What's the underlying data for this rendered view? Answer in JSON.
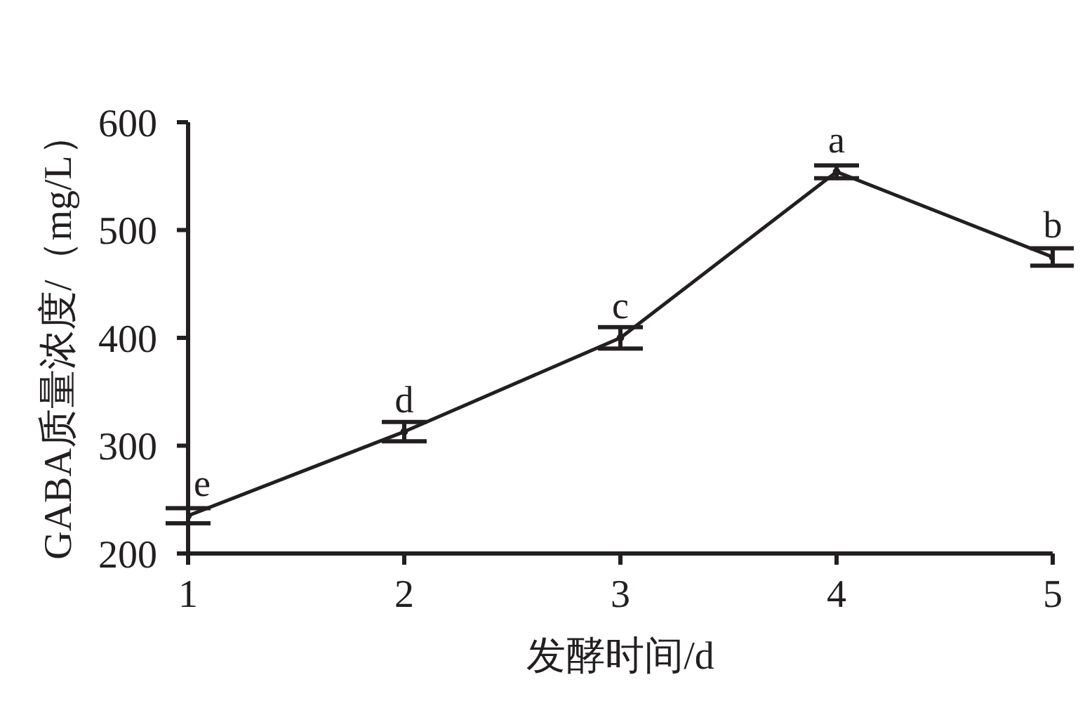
{
  "chart_data": {
    "type": "line",
    "xlabel": "发酵时间/d",
    "ylabel": "GABA质量浓度/（mg/L）",
    "x": [
      1,
      2,
      3,
      4,
      5
    ],
    "values": [
      235,
      313,
      400,
      554,
      475
    ],
    "errors": [
      7,
      9,
      10,
      6,
      8
    ],
    "color": "#231f20",
    "xlim": [
      1,
      5
    ],
    "xticks": [
      1,
      2,
      3,
      4,
      5
    ],
    "ylim": [
      200,
      600
    ],
    "yticks": [
      200,
      300,
      400,
      500,
      600
    ],
    "marker": "circle",
    "line_style": "solid",
    "annotations": [
      {
        "text": "e",
        "x": 1,
        "y": 235
      },
      {
        "text": "d",
        "x": 2,
        "y": 313
      },
      {
        "text": "c",
        "x": 3,
        "y": 400
      },
      {
        "text": "a",
        "x": 4,
        "y": 554
      },
      {
        "text": "b",
        "x": 5,
        "y": 475
      }
    ]
  }
}
